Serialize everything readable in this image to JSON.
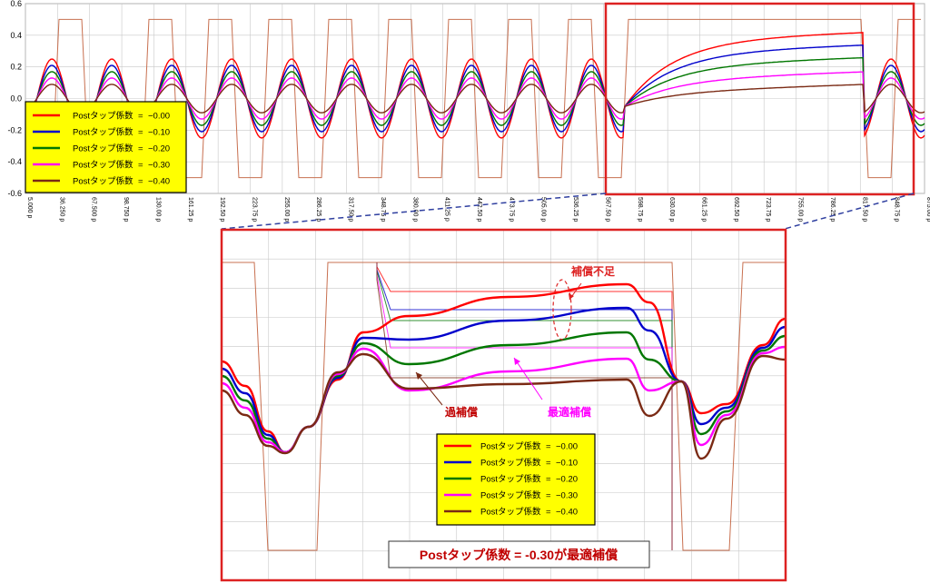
{
  "chart_data": [
    {
      "type": "line",
      "title": "",
      "xlabel": "",
      "ylabel": "",
      "ylim": [
        -0.6,
        0.6
      ],
      "yticks": [
        "0.6",
        "0.4",
        "0.2",
        "0.0",
        "-0.2",
        "-0.4",
        "-0.6"
      ],
      "xticks": [
        "5.000 p",
        "36.250 p",
        "67.500 p",
        "98.750 p",
        "130.00 p",
        "161.25 p",
        "192.50 p",
        "223.75 p",
        "255.00 p",
        "286.25 p",
        "317.50 p",
        "348.75 p",
        "380.00 p",
        "411.25 p",
        "442.50 p",
        "473.75 p",
        "505.00 p",
        "536.25 p",
        "567.50 p",
        "598.75 p",
        "630.00 p",
        "661.25 p",
        "692.50 p",
        "723.75 p",
        "755.00 p",
        "786.25 p",
        "817.50 p",
        "848.75 p",
        "875.00 p"
      ],
      "grid": true,
      "legend_position": "bottom-left",
      "series": [
        {
          "name": "Postタップ係数 = −0.00",
          "color": "#ff0000",
          "tail_level": 0.42
        },
        {
          "name": "Postタップ係数 = −0.10",
          "color": "#0000cc",
          "tail_level": 0.34
        },
        {
          "name": "Postタップ係数 = −0.20",
          "color": "#007700",
          "tail_level": 0.26
        },
        {
          "name": "Postタップ係数 = −0.30",
          "color": "#ff00ff",
          "tail_level": 0.17
        },
        {
          "name": "Postタップ係数 = −0.40",
          "color": "#7a2a14",
          "tail_level": 0.09
        }
      ]
    },
    {
      "type": "line",
      "title": "",
      "grid": true,
      "legend_position": "bottom-center",
      "annotations": {
        "under": "補償不足",
        "over": "過補償",
        "optimal": "最適補償"
      },
      "series": [
        {
          "name": "Postタップ係数 = −0.00",
          "color": "#ff0000"
        },
        {
          "name": "Postタップ係数 = −0.10",
          "color": "#0000cc"
        },
        {
          "name": "Postタップ係数 = −0.20",
          "color": "#007700"
        },
        {
          "name": "Postタップ係数 = −0.30",
          "color": "#ff00ff"
        },
        {
          "name": "Postタップ係数 = −0.40",
          "color": "#7a2a14"
        }
      ]
    }
  ],
  "legend_entries": [
    {
      "label": "Postタップ係数",
      "value": "−0.00",
      "color": "#ff0000"
    },
    {
      "label": "Postタップ係数",
      "value": "−0.10",
      "color": "#0000cc"
    },
    {
      "label": "Postタップ係数",
      "value": "−0.20",
      "color": "#007700"
    },
    {
      "label": "Postタップ係数",
      "value": "−0.30",
      "color": "#ff00ff"
    },
    {
      "label": "Postタップ係数",
      "value": "−0.40",
      "color": "#7a2a14"
    }
  ],
  "caption": "Postタップ係数 = -0.30が最適補償",
  "colors": {
    "highlight": "#dd2222",
    "legend_bg": "#ffff00",
    "grid": "#c8c8c8",
    "ideal": "#c87050"
  }
}
